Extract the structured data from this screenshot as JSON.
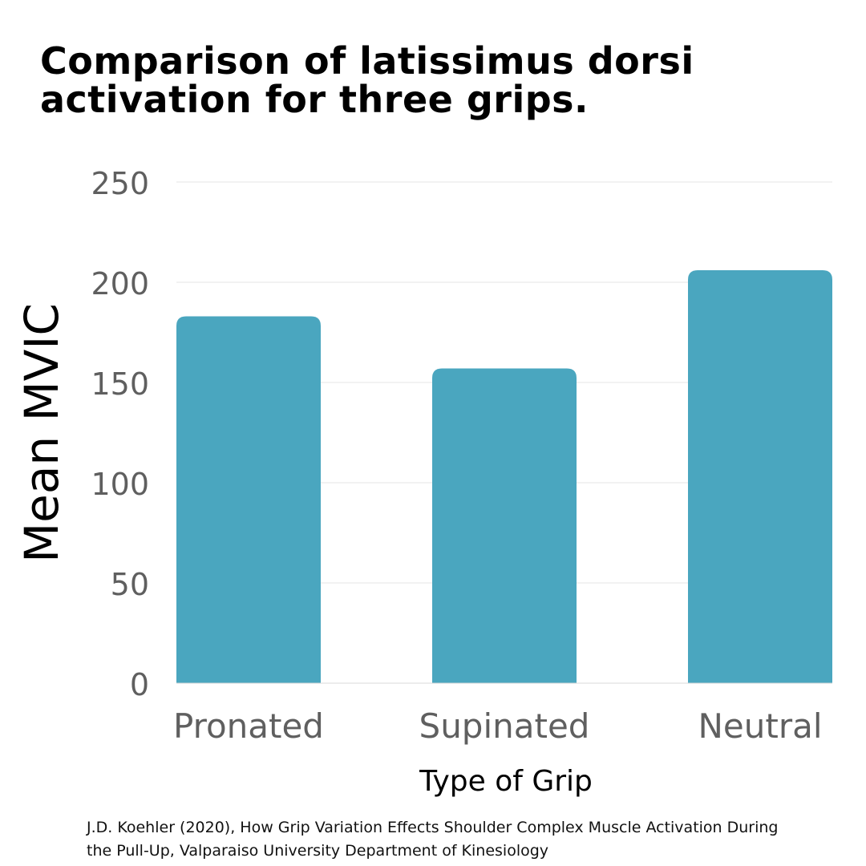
{
  "title_lines": [
    "Comparison of latissimus dorsi",
    "activation for three grips."
  ],
  "caption_lines": [
    "J.D. Koehler (2020), How Grip Variation Effects Shoulder Complex Muscle Activation During",
    "the Pull-Up, Valparaiso University Department of Kinesiology"
  ],
  "colors": {
    "bar": "#4aa6bf",
    "grid": "#e6e6e6",
    "tick_text": "#5f5f5f",
    "text": "#000000"
  },
  "chart_data": {
    "type": "bar",
    "title": "Comparison of latissimus dorsi activation for three grips.",
    "xlabel": "Type of Grip",
    "ylabel": "Mean MVIC",
    "categories": [
      "Pronated",
      "Supinated",
      "Neutral"
    ],
    "values": [
      183,
      157,
      206
    ],
    "ylim": [
      0,
      250
    ],
    "yticks": [
      0,
      50,
      100,
      150,
      200,
      250
    ],
    "grid": true,
    "legend": "none"
  }
}
